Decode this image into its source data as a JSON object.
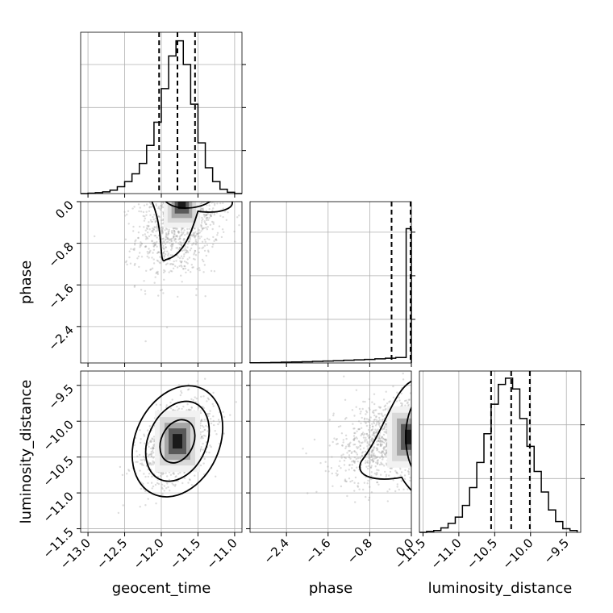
{
  "chart_data": {
    "type": "corner",
    "parameters": [
      "geocent_time",
      "phase",
      "luminosity_distance"
    ],
    "axis_ticks": {
      "geocent_time": {
        "range": [
          -13.1,
          -10.9
        ],
        "ticks": [
          -13.0,
          -12.5,
          -12.0,
          -11.5,
          -11.0
        ],
        "labels": [
          "−13.0",
          "−12.5",
          "−12.0",
          "−11.5",
          "−11.0"
        ]
      },
      "phase": {
        "range": [
          -3.1,
          0.0
        ],
        "ticks": [
          -2.4,
          -1.6,
          -0.8,
          0.0
        ],
        "labels": [
          "−2.4",
          "−1.6",
          "−0.8",
          "0.0"
        ]
      },
      "luminosity_distance": {
        "range": [
          -11.55,
          -9.3
        ],
        "ticks": [
          -11.5,
          -11.0,
          -10.5,
          -10.0,
          -9.5
        ],
        "labels": [
          "−11.5",
          "−11.0",
          "−10.5",
          "−10.0",
          "−9.5"
        ]
      }
    },
    "marginals": [
      {
        "parameter": "geocent_time",
        "bin_edges": [
          -13.1,
          -13.0,
          -12.9,
          -12.8,
          -12.7,
          -12.6,
          -12.5,
          -12.4,
          -12.3,
          -12.2,
          -12.1,
          -12.0,
          -11.9,
          -11.8,
          -11.7,
          -11.6,
          -11.5,
          -11.4,
          -11.3,
          -11.2,
          -11.1,
          -11.0,
          -10.9
        ],
        "counts": [
          0,
          1,
          2,
          4,
          8,
          16,
          28,
          46,
          70,
          112,
          166,
          244,
          320,
          355,
          300,
          208,
          118,
          60,
          28,
          10,
          3,
          0
        ],
        "quantiles": [
          -12.03,
          -11.78,
          -11.54
        ],
        "ylim": [
          0,
          375
        ],
        "yticks": [
          100,
          200,
          300
        ]
      },
      {
        "parameter": "phase",
        "bin_edges": [
          -3.1,
          -2.9,
          -2.7,
          -2.5,
          -2.3,
          -2.1,
          -1.9,
          -1.7,
          -1.5,
          -1.3,
          -1.1,
          -0.9,
          -0.7,
          -0.5,
          -0.3,
          -0.1,
          0.0
        ],
        "counts": [
          2,
          4,
          6,
          9,
          11,
          14,
          18,
          22,
          26,
          31,
          36,
          41,
          47,
          54,
          63,
          1540
        ],
        "quantiles": [
          -0.38,
          0.0
        ],
        "ylim": [
          0,
          1850
        ],
        "yticks": [
          500,
          1000,
          1500
        ]
      },
      {
        "parameter": "luminosity_distance",
        "bin_edges": [
          -11.55,
          -11.45,
          -11.35,
          -11.25,
          -11.15,
          -11.05,
          -10.95,
          -10.85,
          -10.75,
          -10.65,
          -10.55,
          -10.45,
          -10.35,
          -10.25,
          -10.15,
          -10.05,
          -9.95,
          -9.85,
          -9.75,
          -9.65,
          -9.55,
          -9.45,
          -9.35
        ],
        "counts": [
          0,
          1,
          2,
          5,
          10,
          17,
          30,
          50,
          78,
          110,
          143,
          165,
          172,
          160,
          127,
          96,
          68,
          45,
          25,
          12,
          4,
          2
        ],
        "quantiles": [
          -10.55,
          -10.27,
          -10.01
        ],
        "ylim": [
          0,
          180
        ],
        "yticks": [
          60,
          120
        ]
      }
    ],
    "joint": [
      {
        "x": "geocent_time",
        "y": "phase",
        "mean": [
          -11.78,
          -0.55
        ],
        "std": [
          0.28,
          0.55
        ],
        "corr": 0.2,
        "contour_levels": [
          0.39,
          0.86
        ],
        "density_peak": [
          -11.72,
          -0.03
        ]
      },
      {
        "x": "geocent_time",
        "y": "luminosity_distance",
        "mean": [
          -11.78,
          -10.28
        ],
        "std": [
          0.25,
          0.3
        ],
        "corr": 0.45,
        "contour_levels": [
          0.39,
          0.86,
          0.99
        ],
        "density_peak": [
          -11.78,
          -10.28
        ]
      },
      {
        "x": "phase",
        "y": "luminosity_distance",
        "mean": [
          -0.55,
          -10.28
        ],
        "std": [
          0.55,
          0.3
        ],
        "corr": 0.25,
        "contour_levels": [
          0.39,
          0.86
        ],
        "density_peak": [
          -0.03,
          -10.22
        ]
      }
    ],
    "grid": true,
    "legend": "none"
  }
}
